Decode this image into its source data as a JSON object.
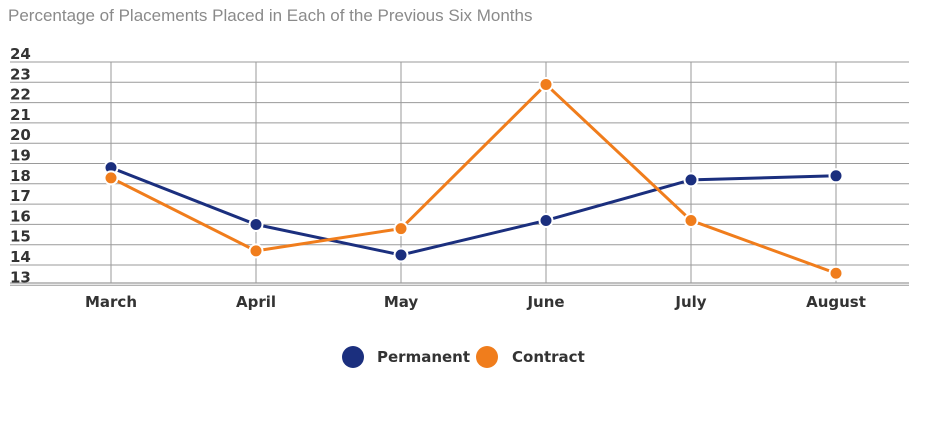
{
  "chart_data": {
    "type": "line",
    "title": "Percentage of Placements Placed in Each of the Previous Six Months",
    "xlabel": "",
    "ylabel": "",
    "categories": [
      "March",
      "April",
      "May",
      "June",
      "July",
      "August"
    ],
    "y_ticks": [
      "24",
      "23",
      "22",
      "21",
      "20",
      "19",
      "18",
      "17",
      "16",
      "15",
      "14",
      "13"
    ],
    "ylim": [
      12.5,
      24
    ],
    "grid": true,
    "legend_position": "bottom-center",
    "series": [
      {
        "name": "Permanent",
        "color": "#1b2f7e",
        "values": [
          18.4,
          15.6,
          14.1,
          15.8,
          17.8,
          18.0
        ]
      },
      {
        "name": "Contract",
        "color": "#f07d1c",
        "values": [
          17.9,
          14.3,
          15.4,
          22.5,
          15.8,
          13.2
        ]
      }
    ]
  }
}
